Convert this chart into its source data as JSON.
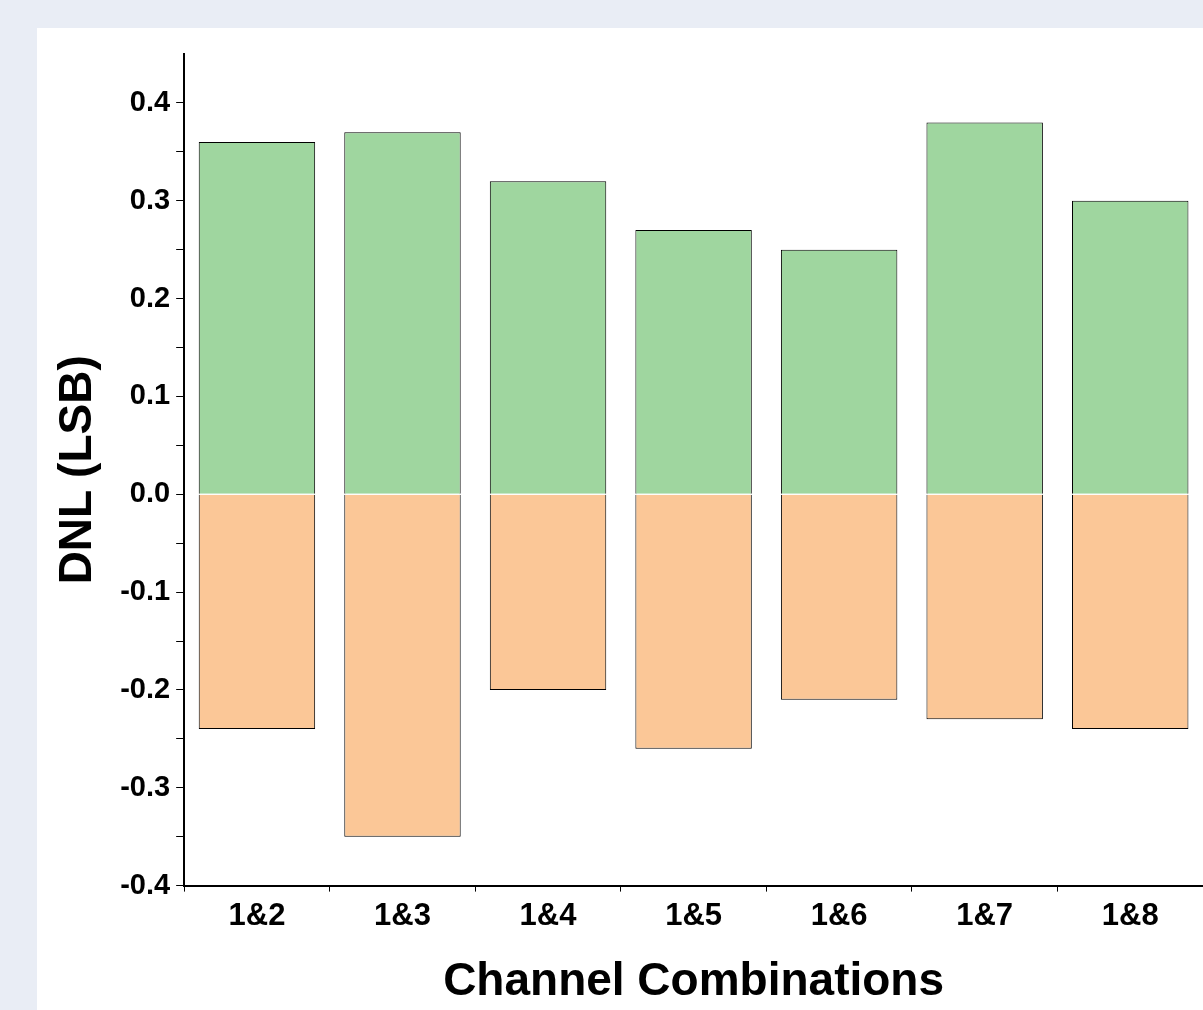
{
  "chart_data": {
    "type": "bar",
    "stacked": true,
    "xlabel": "Channel Combinations",
    "ylabel": "DNL (LSB)",
    "categories": [
      "1&2",
      "1&3",
      "1&4",
      "1&5",
      "1&6",
      "1&7",
      "1&8"
    ],
    "series": [
      {
        "color": "#9fd69f",
        "values": [
          0.36,
          0.37,
          0.32,
          0.27,
          0.25,
          0.38,
          0.3
        ]
      },
      {
        "color": "#fbc797",
        "values": [
          -0.24,
          -0.35,
          -0.2,
          -0.26,
          -0.21,
          -0.23,
          -0.24
        ]
      }
    ],
    "ylim": [
      -0.4,
      0.45
    ],
    "yticks": [
      -0.4,
      {
        "value": -0.35,
        "label": null
      },
      -0.3,
      {
        "value": -0.25,
        "label": null
      },
      -0.2,
      {
        "value": -0.15,
        "label": null
      },
      -0.1,
      {
        "value": -0.05,
        "label": null
      },
      {
        "value": 0,
        "label": "0.0"
      },
      {
        "value": 0.05,
        "label": null
      },
      0.1,
      {
        "value": 0.15,
        "label": null
      },
      0.2,
      {
        "value": 0.25,
        "label": null
      },
      0.3,
      {
        "value": 0.35,
        "label": null
      },
      0.4
    ],
    "grid": false,
    "legend": false
  }
}
